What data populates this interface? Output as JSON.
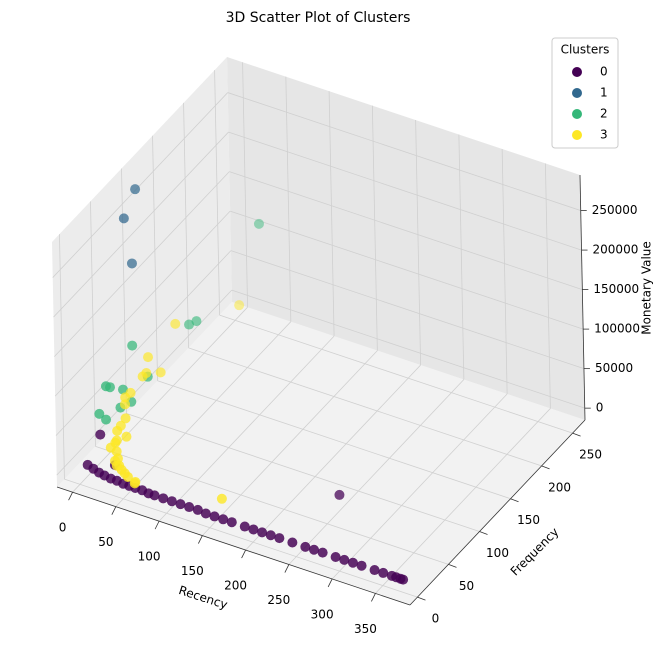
{
  "chart_data": {
    "type": "scatter3d",
    "title": "3D Scatter Plot of Clusters",
    "xlabel": "Recency",
    "ylabel": "Frequency",
    "zlabel": "Monetary Value",
    "xlim": [
      -18,
      390
    ],
    "ylim": [
      -12,
      270
    ],
    "zlim": [
      -15000,
      295000
    ],
    "xticks": [
      0,
      50,
      100,
      150,
      200,
      250,
      300,
      350
    ],
    "yticks": [
      0,
      50,
      100,
      150,
      200,
      250
    ],
    "zticks": [
      0,
      50000,
      100000,
      150000,
      200000,
      250000
    ],
    "grid": true,
    "legend_title": "Clusters",
    "legend_loc": "upper right",
    "series": [
      {
        "name": "0",
        "color": "#440154",
        "x": [
          2,
          10,
          18,
          25,
          33,
          40,
          48,
          55,
          62,
          70,
          78,
          85,
          95,
          105,
          115,
          125,
          135,
          145,
          155,
          165,
          175,
          190,
          200,
          210,
          220,
          230,
          245,
          260,
          270,
          280,
          295,
          305,
          315,
          325,
          340,
          350,
          360,
          365,
          370,
          373,
          10,
          250,
          30
        ],
        "y": [
          10,
          8,
          6,
          5,
          4,
          4,
          3,
          3,
          3,
          3,
          2,
          2,
          2,
          2,
          2,
          2,
          2,
          1,
          1,
          1,
          1,
          1,
          1,
          1,
          1,
          1,
          1,
          1,
          1,
          1,
          1,
          1,
          1,
          1,
          1,
          1,
          1,
          1,
          1,
          1,
          20,
          70,
          15
        ],
        "z": [
          2000,
          1800,
          1500,
          1200,
          1000,
          900,
          800,
          700,
          600,
          600,
          500,
          500,
          400,
          400,
          400,
          350,
          350,
          300,
          300,
          300,
          300,
          300,
          250,
          250,
          250,
          250,
          200,
          200,
          200,
          200,
          200,
          200,
          200,
          150,
          150,
          150,
          150,
          150,
          100,
          100,
          35000,
          5000,
          8000
        ]
      },
      {
        "name": "1",
        "color": "#31688e",
        "x": [
          1,
          2,
          3
        ],
        "y": [
          95,
          75,
          85
        ],
        "z": [
          280000,
          260000,
          195000
        ]
      },
      {
        "name": "2",
        "color": "#35b779",
        "x": [
          30,
          5,
          20,
          25,
          3,
          4,
          8,
          12,
          15,
          6,
          2,
          10
        ],
        "y": [
          250,
          80,
          150,
          155,
          40,
          45,
          60,
          50,
          90,
          35,
          30,
          70
        ],
        "z": [
          118000,
          96000,
          70000,
          72000,
          77000,
          72000,
          58000,
          45000,
          52000,
          40000,
          50000,
          35000
        ]
      },
      {
        "name": "3",
        "color": "#fde725",
        "x": [
          5,
          8,
          10,
          15,
          20,
          25,
          30,
          2,
          3,
          12,
          18,
          22,
          35,
          40,
          45,
          50,
          6,
          9,
          14,
          28,
          33,
          1,
          4,
          16,
          60,
          150,
          60
        ],
        "y": [
          250,
          120,
          60,
          40,
          30,
          25,
          20,
          80,
          70,
          50,
          35,
          45,
          15,
          12,
          10,
          8,
          100,
          90,
          55,
          18,
          14,
          110,
          150,
          28,
          6,
          20,
          5
        ],
        "z": [
          6000,
          30000,
          40000,
          25000,
          20000,
          15000,
          12000,
          35000,
          38000,
          22000,
          18000,
          16000,
          9000,
          8000,
          7000,
          6000,
          45000,
          50000,
          28000,
          10000,
          9000,
          55000,
          65000,
          14000,
          5000,
          5000,
          4000
        ]
      }
    ]
  }
}
